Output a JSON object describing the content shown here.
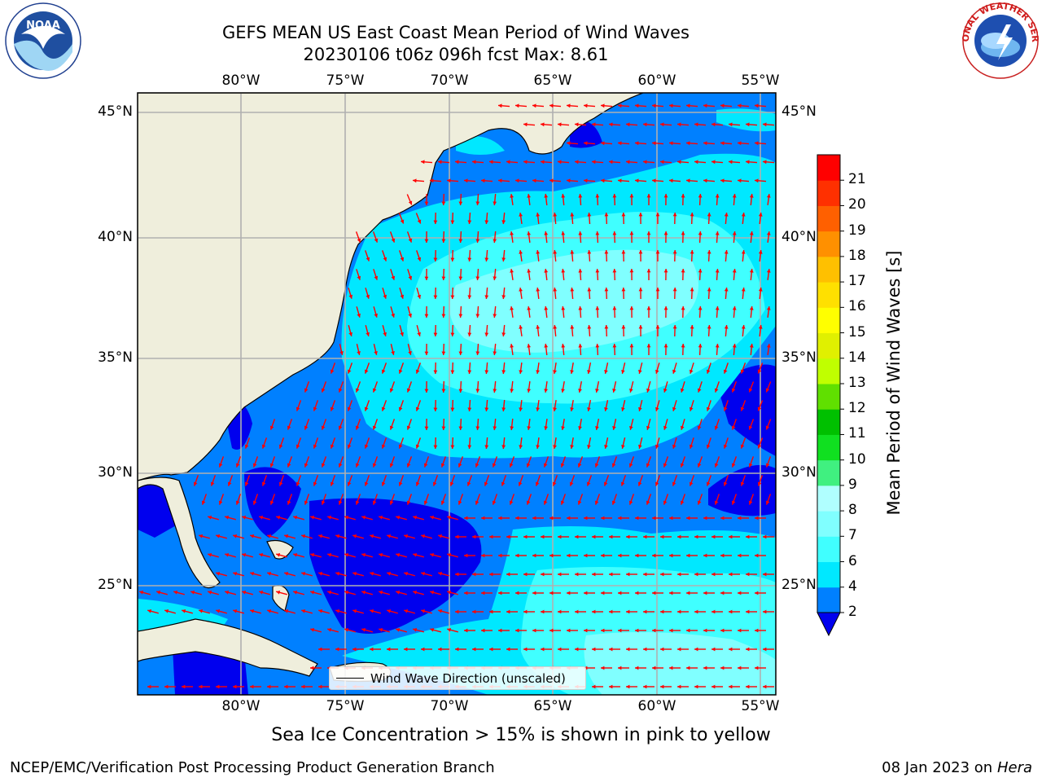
{
  "header": {
    "title_line1": "GEFS MEAN US East Coast Mean Period of Wind Waves",
    "title_line2": "20230106 t06z 096h fcst   Max: 8.61"
  },
  "logos": {
    "left": "NOAA",
    "left_ring_text": "NATIONAL OCEANIC AND ATMOSPHERIC ADMINISTRATION · U.S. DEPARTMENT OF COMMERCE",
    "right_ring_text": "NATIONAL WEATHER SERVICE"
  },
  "axes": {
    "lon_labels": [
      "80°W",
      "75°W",
      "70°W",
      "65°W",
      "60°W",
      "55°W"
    ],
    "lat_labels": [
      "45°N",
      "40°N",
      "35°N",
      "30°N",
      "25°N"
    ]
  },
  "legend": {
    "label": "Wind Wave Direction (unscaled)"
  },
  "colorbar": {
    "title": "Mean Period of Wind Waves [s]",
    "ticks": [
      "2",
      "4",
      "6",
      "7",
      "8",
      "9",
      "10",
      "11",
      "12",
      "13",
      "14",
      "15",
      "16",
      "17",
      "18",
      "19",
      "20",
      "21"
    ],
    "colors": [
      "#0080ff",
      "#00e8ff",
      "#40ffff",
      "#80ffff",
      "#b0ffff",
      "#40f080",
      "#10e020",
      "#00c000",
      "#60e000",
      "#c0ff00",
      "#e0f000",
      "#ffff00",
      "#ffe000",
      "#ffc000",
      "#ff9000",
      "#ff6000",
      "#ff3000",
      "#ff0000"
    ],
    "under_color": "#0000ee"
  },
  "colors": {
    "land": "#efeedc",
    "arrow": "#ff0000",
    "grid": "#b0b0b0"
  },
  "note": "Sea Ice Concentration > 15% is shown in pink to yellow",
  "footer": {
    "left": "NCEP/EMC/Verification Post Processing Product Generation Branch",
    "right_prefix": "08 Jan 2023 on ",
    "right_italic": "Hera"
  }
}
